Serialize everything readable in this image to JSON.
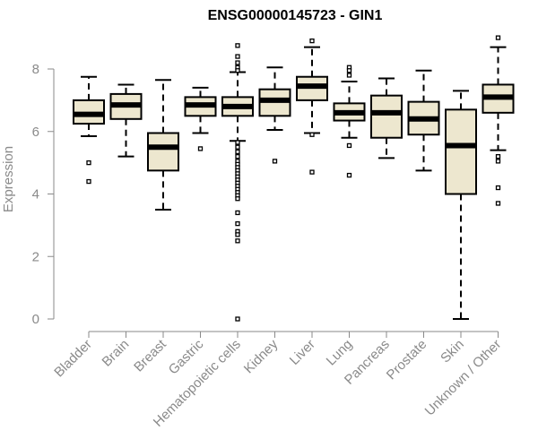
{
  "chart_data": {
    "type": "boxplot",
    "title": "ENSG00000145723 - GIN1",
    "xlabel": "",
    "ylabel": "Expression",
    "ylim": [
      0,
      9.5
    ],
    "yticks": [
      0,
      2,
      4,
      6,
      8
    ],
    "grid": false,
    "box_color": "#ede7cf",
    "categories": [
      "Bladder",
      "Brain",
      "Breast",
      "Gastric",
      "Hematopoietic cells",
      "Kidney",
      "Liver",
      "Lung",
      "Pancreas",
      "Prostate",
      "Skin",
      "Unknown / Other"
    ],
    "boxes": [
      {
        "whisker_low": 5.85,
        "q1": 6.25,
        "median": 6.55,
        "q3": 7.0,
        "whisker_high": 7.75,
        "outliers": [
          5.0,
          4.4
        ]
      },
      {
        "whisker_low": 5.2,
        "q1": 6.4,
        "median": 6.85,
        "q3": 7.2,
        "whisker_high": 7.5,
        "outliers": []
      },
      {
        "whisker_low": 3.5,
        "q1": 4.75,
        "median": 5.5,
        "q3": 5.95,
        "whisker_high": 7.65,
        "outliers": []
      },
      {
        "whisker_low": 5.95,
        "q1": 6.5,
        "median": 6.85,
        "q3": 7.1,
        "whisker_high": 7.4,
        "outliers": [
          5.45
        ]
      },
      {
        "whisker_low": 5.7,
        "q1": 6.5,
        "median": 6.8,
        "q3": 7.1,
        "whisker_high": 7.9,
        "outliers": [
          8.75,
          8.4,
          8.2,
          8.05,
          7.95,
          5.65,
          5.5,
          5.35,
          5.2,
          5.05,
          4.95,
          4.85,
          4.75,
          4.65,
          4.55,
          4.45,
          4.35,
          4.25,
          4.15,
          4.05,
          3.95,
          3.85,
          3.4,
          3.05,
          2.8,
          2.7,
          2.5,
          0.0
        ]
      },
      {
        "whisker_low": 6.05,
        "q1": 6.5,
        "median": 7.0,
        "q3": 7.35,
        "whisker_high": 8.05,
        "outliers": [
          5.05
        ]
      },
      {
        "whisker_low": 5.95,
        "q1": 7.0,
        "median": 7.45,
        "q3": 7.75,
        "whisker_high": 8.7,
        "outliers": [
          8.9,
          5.9,
          4.7
        ]
      },
      {
        "whisker_low": 5.8,
        "q1": 6.35,
        "median": 6.6,
        "q3": 6.9,
        "whisker_high": 7.6,
        "outliers": [
          8.05,
          7.95,
          7.8,
          5.55,
          4.6
        ]
      },
      {
        "whisker_low": 5.15,
        "q1": 5.8,
        "median": 6.6,
        "q3": 7.15,
        "whisker_high": 7.7,
        "outliers": []
      },
      {
        "whisker_low": 4.75,
        "q1": 5.9,
        "median": 6.4,
        "q3": 6.95,
        "whisker_high": 7.95,
        "outliers": []
      },
      {
        "whisker_low": 0.0,
        "q1": 4.0,
        "median": 5.55,
        "q3": 6.7,
        "whisker_high": 7.3,
        "outliers": []
      },
      {
        "whisker_low": 5.4,
        "q1": 6.6,
        "median": 7.1,
        "q3": 7.5,
        "whisker_high": 8.7,
        "outliers": [
          9.0,
          5.2,
          5.05,
          4.2,
          3.7
        ]
      }
    ]
  }
}
